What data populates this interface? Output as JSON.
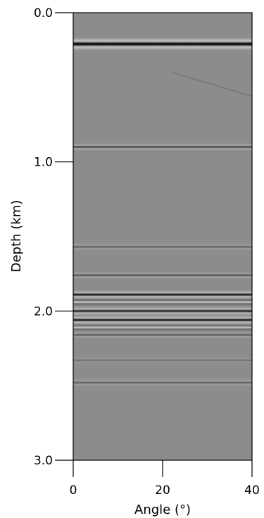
{
  "chart_data": {
    "type": "heatmap",
    "title": "",
    "xlabel": "Angle (°)",
    "ylabel": "Depth (km)",
    "xlim": [
      0,
      40
    ],
    "ylim": [
      0,
      3.0
    ],
    "y_inverted": true,
    "x_ticks": [
      "0",
      "20",
      "40"
    ],
    "y_ticks": [
      "0.0",
      "1.0",
      "2.0",
      "3.0"
    ],
    "grid": false,
    "colormap": "grayscale",
    "colors": {
      "background": "#8c8c8c",
      "positive": "#ffffff",
      "negative": "#000000"
    },
    "reflectors": [
      {
        "depth": 0.21,
        "amplitude": -1.0,
        "width": 0.018
      },
      {
        "depth": 0.9,
        "amplitude": -0.6,
        "width": 0.01
      },
      {
        "depth": 1.57,
        "amplitude": -0.35,
        "width": 0.01
      },
      {
        "depth": 1.76,
        "amplitude": -0.45,
        "width": 0.01
      },
      {
        "depth": 1.89,
        "amplitude": -0.9,
        "width": 0.012
      },
      {
        "depth": 1.94,
        "amplitude": 0.6,
        "width": 0.01
      },
      {
        "depth": 2.0,
        "amplitude": -0.8,
        "width": 0.012
      },
      {
        "depth": 2.06,
        "amplitude": -0.9,
        "width": 0.012
      },
      {
        "depth": 2.11,
        "amplitude": 0.5,
        "width": 0.01
      },
      {
        "depth": 2.16,
        "amplitude": -0.4,
        "width": 0.01
      },
      {
        "depth": 2.33,
        "amplitude": -0.2,
        "width": 0.01
      },
      {
        "depth": 2.48,
        "amplitude": -0.35,
        "width": 0.01
      }
    ],
    "dipping_event": {
      "x_start": 22,
      "depth_start": 0.4,
      "x_end": 40,
      "depth_end": 0.56,
      "amplitude": -0.25
    }
  }
}
